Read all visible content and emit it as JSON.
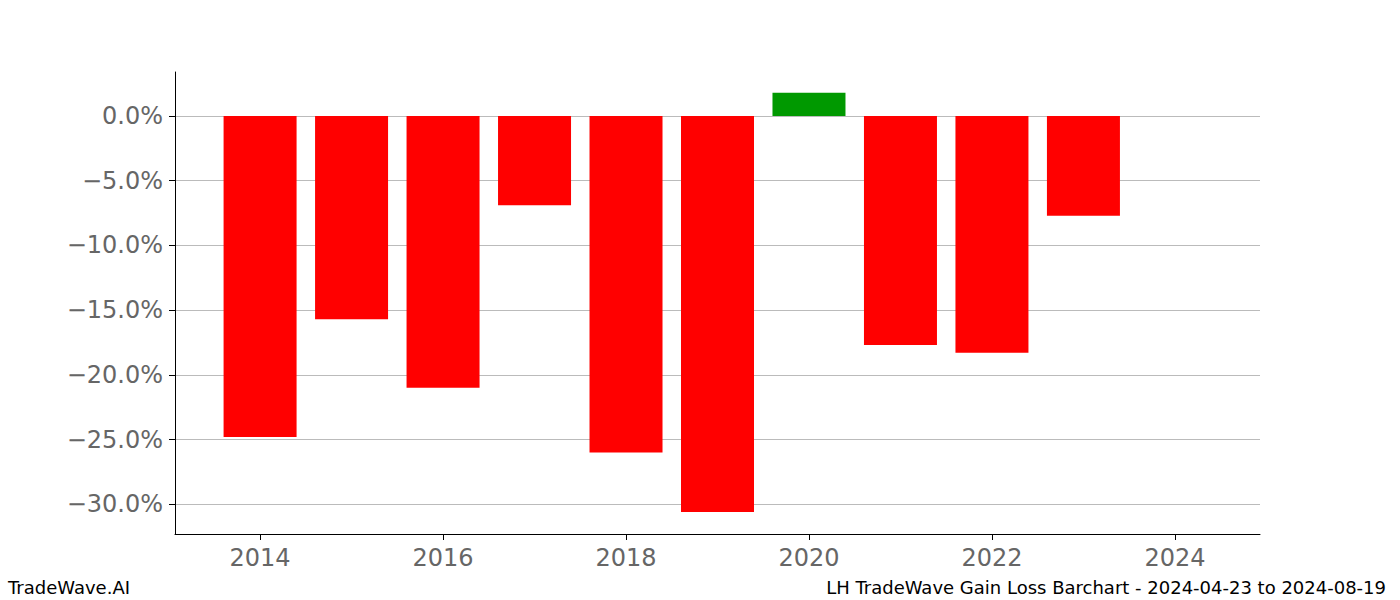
{
  "chart_data": {
    "type": "bar",
    "title": "LH TradeWave Gain Loss Barchart - 2024-04-23 to 2024-08-19",
    "annotations": [
      "TradeWave.AI"
    ],
    "x": [
      2014,
      2015,
      2016,
      2017,
      2018,
      2019,
      2020,
      2021,
      2022,
      2023
    ],
    "values": [
      -24.8,
      -15.7,
      -21.0,
      -6.9,
      -26.0,
      -30.6,
      1.8,
      -17.7,
      -18.3,
      -7.7
    ],
    "colors": [
      "#ff0000",
      "#ff0000",
      "#ff0000",
      "#ff0000",
      "#ff0000",
      "#ff0000",
      "#009900",
      "#ff0000",
      "#ff0000",
      "#ff0000"
    ],
    "xlim": [
      2013.07,
      2024.93
    ],
    "xticks": [
      2014,
      2016,
      2018,
      2020,
      2022,
      2024
    ],
    "ylim": [
      -32.3,
      3.4
    ],
    "yticks": [
      {
        "value": -30,
        "label": "−30.0%"
      },
      {
        "value": -25,
        "label": "−25.0%"
      },
      {
        "value": -20,
        "label": "−20.0%"
      },
      {
        "value": -15,
        "label": "−15.0%"
      },
      {
        "value": -10,
        "label": "−10.0%"
      },
      {
        "value": -5,
        "label": "−5.0%"
      },
      {
        "value": 0,
        "label": "0.0%"
      }
    ],
    "grid": true
  }
}
